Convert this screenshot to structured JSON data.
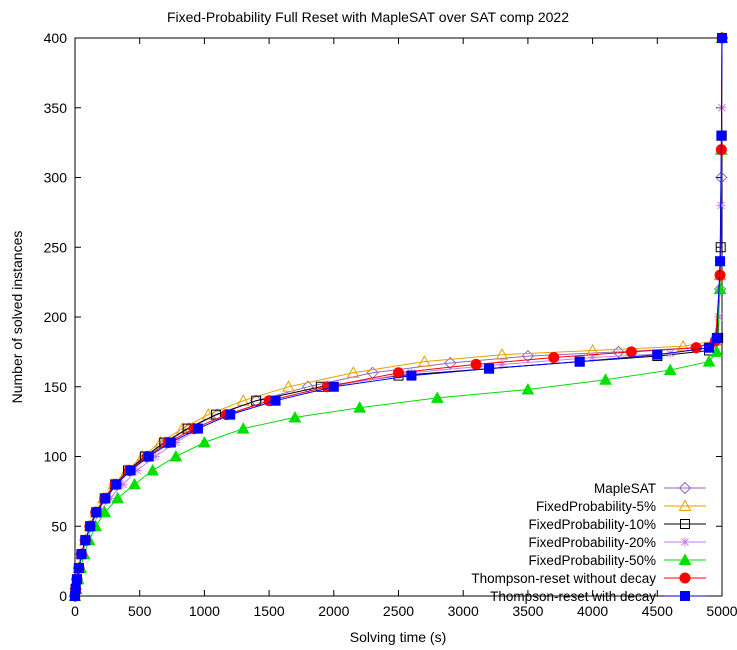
{
  "chart_data": {
    "type": "line",
    "title": "Fixed-Probability Full Reset with MapleSAT over SAT comp 2022",
    "xlabel": "Solving time (s)",
    "ylabel": "Number of solved instances",
    "xlim": [
      0,
      5000
    ],
    "ylim": [
      0,
      400
    ],
    "xticks": [
      0,
      500,
      1000,
      1500,
      2000,
      2500,
      3000,
      3500,
      4000,
      4500,
      5000
    ],
    "yticks": [
      0,
      50,
      100,
      150,
      200,
      250,
      300,
      350,
      400
    ],
    "grid": false,
    "legend_position": "bottom-right",
    "series": [
      {
        "name": "MapleSAT",
        "color": "#9467bd",
        "marker": "diamond-open",
        "points": [
          [
            0,
            0
          ],
          [
            5,
            5
          ],
          [
            15,
            12
          ],
          [
            30,
            20
          ],
          [
            50,
            30
          ],
          [
            80,
            40
          ],
          [
            120,
            50
          ],
          [
            170,
            60
          ],
          [
            240,
            70
          ],
          [
            320,
            80
          ],
          [
            420,
            90
          ],
          [
            550,
            100
          ],
          [
            700,
            110
          ],
          [
            880,
            120
          ],
          [
            1100,
            130
          ],
          [
            1400,
            140
          ],
          [
            1800,
            150
          ],
          [
            2300,
            160
          ],
          [
            2900,
            167
          ],
          [
            3500,
            172
          ],
          [
            4200,
            175
          ],
          [
            4800,
            178
          ],
          [
            4950,
            182
          ],
          [
            4985,
            220
          ],
          [
            4995,
            300
          ],
          [
            5000,
            400
          ]
        ]
      },
      {
        "name": "FixedProbability-5%",
        "color": "#e69f00",
        "marker": "triangle-open",
        "points": [
          [
            0,
            0
          ],
          [
            5,
            5
          ],
          [
            15,
            12
          ],
          [
            30,
            20
          ],
          [
            50,
            30
          ],
          [
            80,
            40
          ],
          [
            115,
            50
          ],
          [
            160,
            60
          ],
          [
            220,
            70
          ],
          [
            300,
            80
          ],
          [
            400,
            90
          ],
          [
            520,
            100
          ],
          [
            660,
            110
          ],
          [
            830,
            120
          ],
          [
            1030,
            130
          ],
          [
            1300,
            140
          ],
          [
            1650,
            150
          ],
          [
            2150,
            160
          ],
          [
            2700,
            168
          ],
          [
            3300,
            173
          ],
          [
            4000,
            176
          ],
          [
            4700,
            179
          ],
          [
            4950,
            183
          ],
          [
            4985,
            230
          ],
          [
            4995,
            320
          ],
          [
            5000,
            400
          ]
        ]
      },
      {
        "name": "FixedProbability-10%",
        "color": "#000000",
        "marker": "square-open",
        "points": [
          [
            0,
            0
          ],
          [
            5,
            5
          ],
          [
            15,
            12
          ],
          [
            30,
            20
          ],
          [
            50,
            30
          ],
          [
            80,
            40
          ],
          [
            118,
            50
          ],
          [
            165,
            60
          ],
          [
            230,
            70
          ],
          [
            310,
            80
          ],
          [
            410,
            90
          ],
          [
            540,
            100
          ],
          [
            690,
            110
          ],
          [
            870,
            120
          ],
          [
            1090,
            130
          ],
          [
            1400,
            140
          ],
          [
            1900,
            150
          ],
          [
            2500,
            158
          ],
          [
            3200,
            163
          ],
          [
            3900,
            168
          ],
          [
            4500,
            172
          ],
          [
            4900,
            176
          ],
          [
            4970,
            185
          ],
          [
            4990,
            250
          ],
          [
            4998,
            330
          ],
          [
            5000,
            400
          ]
        ]
      },
      {
        "name": "FixedProbability-20%",
        "color": "#c77ee8",
        "marker": "star",
        "points": [
          [
            0,
            0
          ],
          [
            5,
            5
          ],
          [
            15,
            12
          ],
          [
            30,
            20
          ],
          [
            55,
            30
          ],
          [
            90,
            40
          ],
          [
            135,
            50
          ],
          [
            190,
            60
          ],
          [
            270,
            70
          ],
          [
            370,
            80
          ],
          [
            480,
            90
          ],
          [
            620,
            100
          ],
          [
            780,
            110
          ],
          [
            960,
            120
          ],
          [
            1180,
            130
          ],
          [
            1500,
            140
          ],
          [
            1950,
            150
          ],
          [
            2600,
            160
          ],
          [
            3300,
            166
          ],
          [
            4000,
            171
          ],
          [
            4600,
            174
          ],
          [
            4920,
            178
          ],
          [
            4975,
            200
          ],
          [
            4992,
            280
          ],
          [
            4999,
            350
          ],
          [
            5000,
            400
          ]
        ]
      },
      {
        "name": "FixedProbability-50%",
        "color": "#00e000",
        "marker": "triangle-filled",
        "points": [
          [
            0,
            0
          ],
          [
            10,
            5
          ],
          [
            25,
            12
          ],
          [
            45,
            20
          ],
          [
            70,
            30
          ],
          [
            110,
            40
          ],
          [
            160,
            50
          ],
          [
            230,
            60
          ],
          [
            330,
            70
          ],
          [
            460,
            80
          ],
          [
            600,
            90
          ],
          [
            780,
            100
          ],
          [
            1000,
            110
          ],
          [
            1300,
            120
          ],
          [
            1700,
            128
          ],
          [
            2200,
            135
          ],
          [
            2800,
            142
          ],
          [
            3500,
            148
          ],
          [
            4100,
            155
          ],
          [
            4600,
            162
          ],
          [
            4900,
            168
          ],
          [
            4960,
            175
          ],
          [
            4985,
            220
          ],
          [
            4995,
            320
          ],
          [
            5000,
            400
          ]
        ]
      },
      {
        "name": "Thompson-reset without decay",
        "color": "#ff0000",
        "marker": "circle-filled",
        "points": [
          [
            0,
            0
          ],
          [
            5,
            5
          ],
          [
            15,
            12
          ],
          [
            30,
            20
          ],
          [
            50,
            30
          ],
          [
            80,
            40
          ],
          [
            115,
            50
          ],
          [
            160,
            60
          ],
          [
            230,
            70
          ],
          [
            310,
            80
          ],
          [
            420,
            90
          ],
          [
            560,
            100
          ],
          [
            720,
            110
          ],
          [
            920,
            120
          ],
          [
            1170,
            130
          ],
          [
            1500,
            140
          ],
          [
            1950,
            150
          ],
          [
            2500,
            160
          ],
          [
            3100,
            166
          ],
          [
            3700,
            171
          ],
          [
            4300,
            175
          ],
          [
            4800,
            178
          ],
          [
            4950,
            183
          ],
          [
            4985,
            230
          ],
          [
            4995,
            320
          ],
          [
            5000,
            400
          ]
        ]
      },
      {
        "name": "Thompson-reset with decay",
        "color": "#0000ff",
        "marker": "square-filled",
        "points": [
          [
            0,
            0
          ],
          [
            5,
            5
          ],
          [
            15,
            12
          ],
          [
            30,
            20
          ],
          [
            50,
            30
          ],
          [
            80,
            40
          ],
          [
            118,
            50
          ],
          [
            165,
            60
          ],
          [
            235,
            70
          ],
          [
            320,
            80
          ],
          [
            430,
            90
          ],
          [
            570,
            100
          ],
          [
            740,
            110
          ],
          [
            950,
            120
          ],
          [
            1200,
            130
          ],
          [
            1550,
            140
          ],
          [
            2000,
            150
          ],
          [
            2600,
            158
          ],
          [
            3200,
            163
          ],
          [
            3900,
            168
          ],
          [
            4500,
            173
          ],
          [
            4900,
            178
          ],
          [
            4960,
            185
          ],
          [
            4985,
            240
          ],
          [
            4995,
            330
          ],
          [
            5000,
            400
          ]
        ]
      }
    ]
  }
}
